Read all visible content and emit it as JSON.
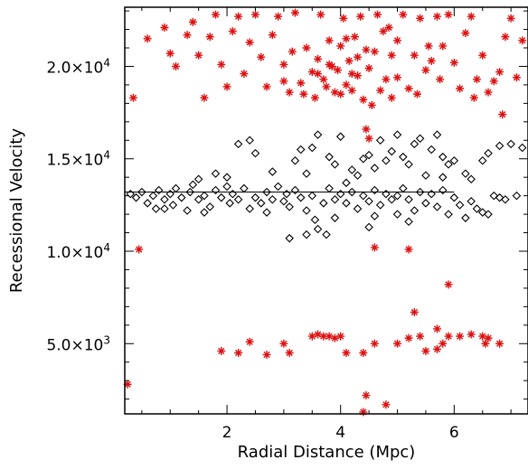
{
  "chart_data": {
    "type": "scatter",
    "title": "",
    "xlabel": "Radial Distance (Mpc)",
    "ylabel": "Recessional Velocity",
    "xlim": [
      0.2,
      7.3
    ],
    "ylim": [
      1200,
      23200
    ],
    "grid": false,
    "x_ticks": [
      {
        "value": 2,
        "label": "2"
      },
      {
        "value": 4,
        "label": "4"
      },
      {
        "value": 6,
        "label": "6"
      }
    ],
    "y_ticks": [
      {
        "value": 5000,
        "label": "5.0×10",
        "exp": "3"
      },
      {
        "value": 10000,
        "label": "1.0×10",
        "exp": "4"
      },
      {
        "value": 15000,
        "label": "1.5×10",
        "exp": "4"
      },
      {
        "value": 20000,
        "label": "2.0×10",
        "exp": "4"
      }
    ],
    "reference_line": {
      "x": [
        0.2,
        6.0
      ],
      "y": [
        13200,
        13200
      ]
    },
    "series": [
      {
        "marker": "diamond",
        "color": "#000000",
        "points": [
          [
            0.3,
            13100
          ],
          [
            0.4,
            12900
          ],
          [
            0.5,
            13200
          ],
          [
            0.6,
            12600
          ],
          [
            0.7,
            13000
          ],
          [
            0.75,
            12300
          ],
          [
            0.8,
            13300
          ],
          [
            0.9,
            12800
          ],
          [
            1.0,
            13100
          ],
          [
            1.05,
            12500
          ],
          [
            1.1,
            13400
          ],
          [
            1.2,
            12900
          ],
          [
            1.3,
            12200
          ],
          [
            1.35,
            13200
          ],
          [
            1.4,
            13600
          ],
          [
            1.5,
            12800
          ],
          [
            1.6,
            13000
          ],
          [
            1.7,
            12400
          ],
          [
            1.8,
            13300
          ],
          [
            1.9,
            12900
          ],
          [
            2.0,
            13500
          ],
          [
            2.05,
            12600
          ],
          [
            2.1,
            13100
          ],
          [
            2.2,
            12800
          ],
          [
            2.3,
            13400
          ],
          [
            2.4,
            12300
          ],
          [
            2.5,
            12900
          ],
          [
            2.6,
            12600
          ],
          [
            2.7,
            13200
          ],
          [
            2.8,
            12800
          ],
          [
            2.9,
            13500
          ],
          [
            3.0,
            12700
          ],
          [
            3.05,
            13100
          ],
          [
            3.1,
            12400
          ],
          [
            3.2,
            13300
          ],
          [
            3.3,
            12900
          ],
          [
            3.4,
            12200
          ],
          [
            3.5,
            13000
          ],
          [
            3.55,
            11700
          ],
          [
            3.6,
            11200
          ],
          [
            3.7,
            12600
          ],
          [
            3.75,
            10900
          ],
          [
            3.8,
            13400
          ],
          [
            3.9,
            12800
          ],
          [
            4.0,
            13100
          ],
          [
            4.1,
            12600
          ],
          [
            4.2,
            13200
          ],
          [
            4.3,
            12300
          ],
          [
            4.4,
            13000
          ],
          [
            4.5,
            12700
          ],
          [
            4.6,
            13300
          ],
          [
            4.7,
            12500
          ],
          [
            4.8,
            13100
          ],
          [
            4.9,
            12800
          ],
          [
            5.0,
            13000
          ],
          [
            5.1,
            13400
          ],
          [
            5.2,
            12800
          ],
          [
            5.3,
            12200
          ],
          [
            5.4,
            13200
          ],
          [
            5.5,
            12600
          ],
          [
            5.6,
            13100
          ],
          [
            5.7,
            12400
          ],
          [
            5.8,
            13300
          ],
          [
            5.9,
            12000
          ],
          [
            6.0,
            12900
          ],
          [
            6.1,
            12500
          ],
          [
            6.2,
            11800
          ],
          [
            6.3,
            12700
          ],
          [
            6.4,
            12300
          ],
          [
            6.5,
            12100
          ],
          [
            6.6,
            12000
          ],
          [
            6.7,
            13000
          ],
          [
            6.8,
            12900
          ],
          [
            2.5,
            15300
          ],
          [
            2.8,
            14300
          ],
          [
            3.2,
            14900
          ],
          [
            3.3,
            15500
          ],
          [
            3.4,
            14200
          ],
          [
            3.5,
            15600
          ],
          [
            3.6,
            16300
          ],
          [
            3.8,
            15100
          ],
          [
            3.9,
            14700
          ],
          [
            4.0,
            16200
          ],
          [
            4.2,
            14400
          ],
          [
            4.4,
            15000
          ],
          [
            4.5,
            15200
          ],
          [
            4.6,
            14500
          ],
          [
            4.7,
            16000
          ],
          [
            4.8,
            14900
          ],
          [
            4.9,
            15400
          ],
          [
            5.0,
            16300
          ],
          [
            5.1,
            15100
          ],
          [
            5.2,
            14700
          ],
          [
            5.3,
            15800
          ],
          [
            5.4,
            16100
          ],
          [
            5.5,
            14100
          ],
          [
            5.6,
            15500
          ],
          [
            5.7,
            16300
          ],
          [
            5.8,
            15100
          ],
          [
            5.9,
            14700
          ],
          [
            6.0,
            14900
          ],
          [
            6.2,
            14200
          ],
          [
            6.3,
            13900
          ],
          [
            6.5,
            14900
          ],
          [
            6.6,
            15300
          ],
          [
            6.8,
            15700
          ],
          [
            7.0,
            15800
          ],
          [
            7.2,
            15600
          ],
          [
            2.2,
            15800
          ],
          [
            2.4,
            16000
          ],
          [
            2.0,
            14000
          ],
          [
            1.8,
            14200
          ],
          [
            1.5,
            13900
          ],
          [
            4.1,
            13700
          ],
          [
            4.3,
            14100
          ],
          [
            5.8,
            14000
          ],
          [
            3.1,
            10700
          ],
          [
            3.4,
            10900
          ],
          [
            4.5,
            11300
          ],
          [
            5.2,
            11600
          ],
          [
            0.9,
            12300
          ],
          [
            1.6,
            12100
          ],
          [
            2.7,
            12100
          ],
          [
            3.9,
            11800
          ],
          [
            4.6,
            11900
          ],
          [
            5.0,
            12000
          ],
          [
            6.9,
            12800
          ],
          [
            7.1,
            13000
          ]
        ]
      },
      {
        "marker": "asterisk",
        "color": "#dd1111",
        "points": [
          [
            0.35,
            18300
          ],
          [
            0.6,
            21500
          ],
          [
            0.9,
            22100
          ],
          [
            1.0,
            20700
          ],
          [
            1.1,
            20000
          ],
          [
            1.3,
            21700
          ],
          [
            1.4,
            22400
          ],
          [
            1.5,
            20600
          ],
          [
            1.6,
            18300
          ],
          [
            1.7,
            21600
          ],
          [
            1.8,
            22800
          ],
          [
            1.9,
            20100
          ],
          [
            2.0,
            18900
          ],
          [
            2.1,
            21900
          ],
          [
            2.2,
            22700
          ],
          [
            2.3,
            19600
          ],
          [
            2.4,
            21300
          ],
          [
            2.5,
            22800
          ],
          [
            2.6,
            20500
          ],
          [
            2.7,
            18900
          ],
          [
            2.8,
            21700
          ],
          [
            2.9,
            22700
          ],
          [
            3.0,
            19200
          ],
          [
            3.1,
            18600
          ],
          [
            3.15,
            20800
          ],
          [
            3.2,
            22900
          ],
          [
            3.3,
            19100
          ],
          [
            3.35,
            18500
          ],
          [
            3.4,
            21000
          ],
          [
            3.5,
            19700
          ],
          [
            3.55,
            18300
          ],
          [
            3.6,
            20400
          ],
          [
            3.65,
            22800
          ],
          [
            3.7,
            19300
          ],
          [
            3.75,
            18900
          ],
          [
            3.8,
            21400
          ],
          [
            3.85,
            20000
          ],
          [
            3.9,
            18600
          ],
          [
            3.95,
            19800
          ],
          [
            4.0,
            21100
          ],
          [
            4.05,
            22600
          ],
          [
            4.1,
            19000
          ],
          [
            4.15,
            20300
          ],
          [
            4.2,
            18700
          ],
          [
            4.25,
            21600
          ],
          [
            4.3,
            19500
          ],
          [
            4.35,
            22700
          ],
          [
            4.4,
            18200
          ],
          [
            4.45,
            20900
          ],
          [
            4.5,
            19900
          ],
          [
            4.55,
            17900
          ],
          [
            4.6,
            20800
          ],
          [
            4.65,
            22800
          ],
          [
            4.7,
            18700
          ],
          [
            4.75,
            21900
          ],
          [
            4.8,
            19300
          ],
          [
            4.85,
            22100
          ],
          [
            4.9,
            20600
          ],
          [
            5.0,
            19400
          ],
          [
            5.1,
            22800
          ],
          [
            5.2,
            18800
          ],
          [
            5.3,
            20600
          ],
          [
            5.4,
            22600
          ],
          [
            5.5,
            19800
          ],
          [
            5.6,
            20300
          ],
          [
            5.7,
            22700
          ],
          [
            5.75,
            19300
          ],
          [
            5.8,
            21100
          ],
          [
            5.9,
            22800
          ],
          [
            6.0,
            20200
          ],
          [
            6.1,
            18800
          ],
          [
            6.2,
            21800
          ],
          [
            6.3,
            22700
          ],
          [
            6.4,
            19300
          ],
          [
            6.5,
            20600
          ],
          [
            6.6,
            18600
          ],
          [
            6.7,
            19200
          ],
          [
            6.8,
            19700
          ],
          [
            6.9,
            21600
          ],
          [
            7.0,
            22600
          ],
          [
            7.1,
            19400
          ],
          [
            7.2,
            21400
          ],
          [
            6.85,
            17400
          ],
          [
            4.45,
            16600
          ],
          [
            4.1,
            21500
          ],
          [
            3.0,
            20100
          ],
          [
            5.35,
            18500
          ],
          [
            6.35,
            18300
          ],
          [
            3.6,
            19600
          ],
          [
            4.0,
            18500
          ],
          [
            4.3,
            20500
          ],
          [
            3.8,
            20100
          ],
          [
            4.9,
            18300
          ],
          [
            5.55,
            21100
          ],
          [
            5.0,
            21400
          ],
          [
            4.2,
            19600
          ],
          [
            0.45,
            10100
          ],
          [
            4.6,
            10200
          ],
          [
            5.2,
            10100
          ],
          [
            4.5,
            16100
          ],
          [
            5.9,
            8200
          ],
          [
            5.3,
            6700
          ],
          [
            5.7,
            5800
          ],
          [
            1.9,
            4600
          ],
          [
            2.2,
            4500
          ],
          [
            2.4,
            5100
          ],
          [
            2.7,
            4400
          ],
          [
            3.0,
            5000
          ],
          [
            3.1,
            4500
          ],
          [
            3.5,
            5400
          ],
          [
            3.6,
            5500
          ],
          [
            3.7,
            5400
          ],
          [
            3.8,
            5400
          ],
          [
            3.9,
            5300
          ],
          [
            4.0,
            5400
          ],
          [
            4.1,
            4500
          ],
          [
            4.4,
            4500
          ],
          [
            4.6,
            5000
          ],
          [
            5.0,
            5000
          ],
          [
            5.2,
            5300
          ],
          [
            5.4,
            5400
          ],
          [
            5.5,
            4600
          ],
          [
            5.7,
            4700
          ],
          [
            5.8,
            5000
          ],
          [
            5.9,
            5400
          ],
          [
            6.1,
            5400
          ],
          [
            6.3,
            5500
          ],
          [
            6.5,
            5400
          ],
          [
            6.6,
            5300
          ],
          [
            6.8,
            5000
          ],
          [
            0.25,
            2800
          ],
          [
            4.4,
            1300
          ],
          [
            4.45,
            2200
          ],
          [
            4.8,
            1700
          ],
          [
            6.55,
            5000
          ]
        ]
      }
    ]
  }
}
